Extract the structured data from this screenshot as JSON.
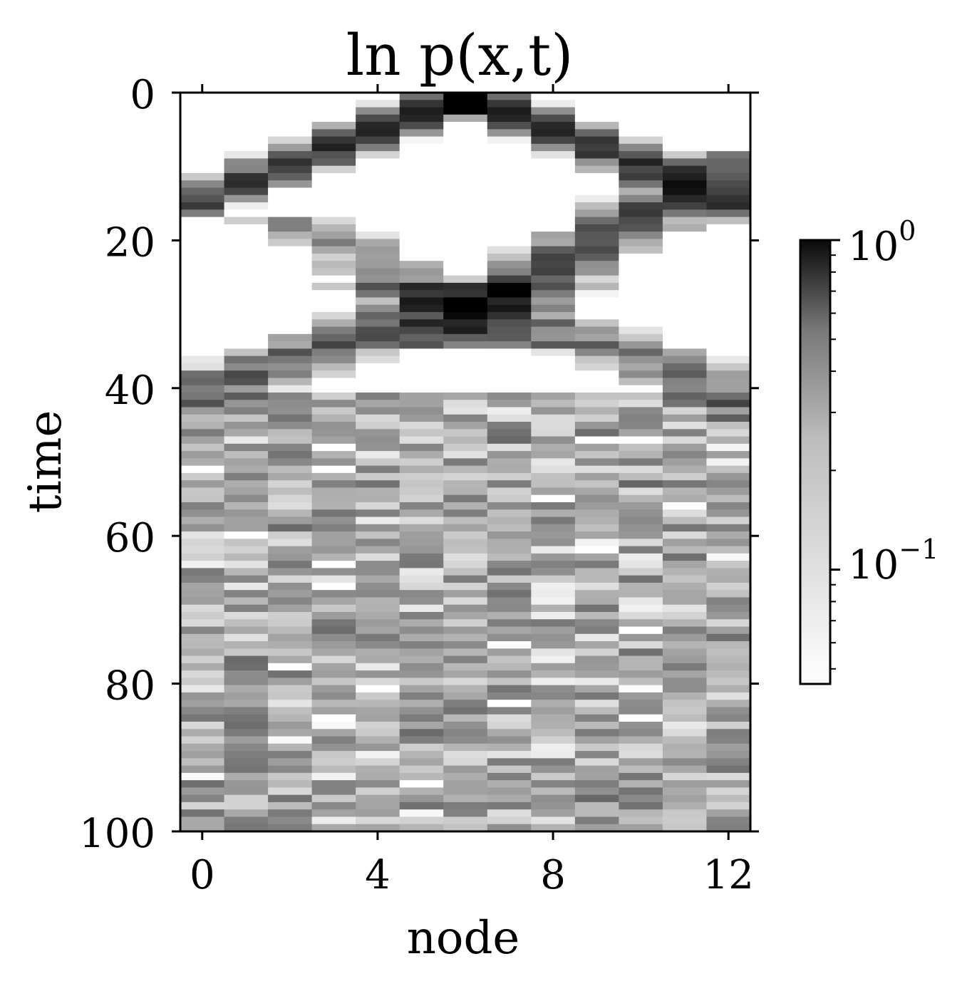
{
  "chart_data": {
    "type": "heatmap",
    "title": "ln p(x,t)",
    "xlabel": "node",
    "ylabel": "time",
    "x_ticks": [
      0,
      4,
      8,
      12
    ],
    "y_ticks": [
      0,
      20,
      40,
      60,
      80,
      100
    ],
    "xlim": [
      -0.5,
      12.5
    ],
    "ylim": [
      100,
      0
    ],
    "nodes": 13,
    "time_steps": 101,
    "colormap": "gray_r",
    "color_scale": "log",
    "colorbar": {
      "range": [
        0.045,
        1.0
      ],
      "ticks": [
        {
          "base": "10",
          "exp": "0",
          "value": 1.0
        },
        {
          "base": "10",
          "exp": "−1",
          "value": 0.1
        }
      ]
    },
    "initial_node": 6,
    "wavefronts": [
      {
        "time_start": 0,
        "time_end": 16,
        "node_start": 6,
        "node_end_left": 0,
        "node_end_right": 12
      },
      {
        "time_start": 10,
        "time_end": 30,
        "node_start": 12,
        "node_end": 6
      },
      {
        "time_start": 26,
        "time_end": 40,
        "node_start": 5,
        "node_end": 0
      }
    ],
    "background_level_late": 0.06
  }
}
